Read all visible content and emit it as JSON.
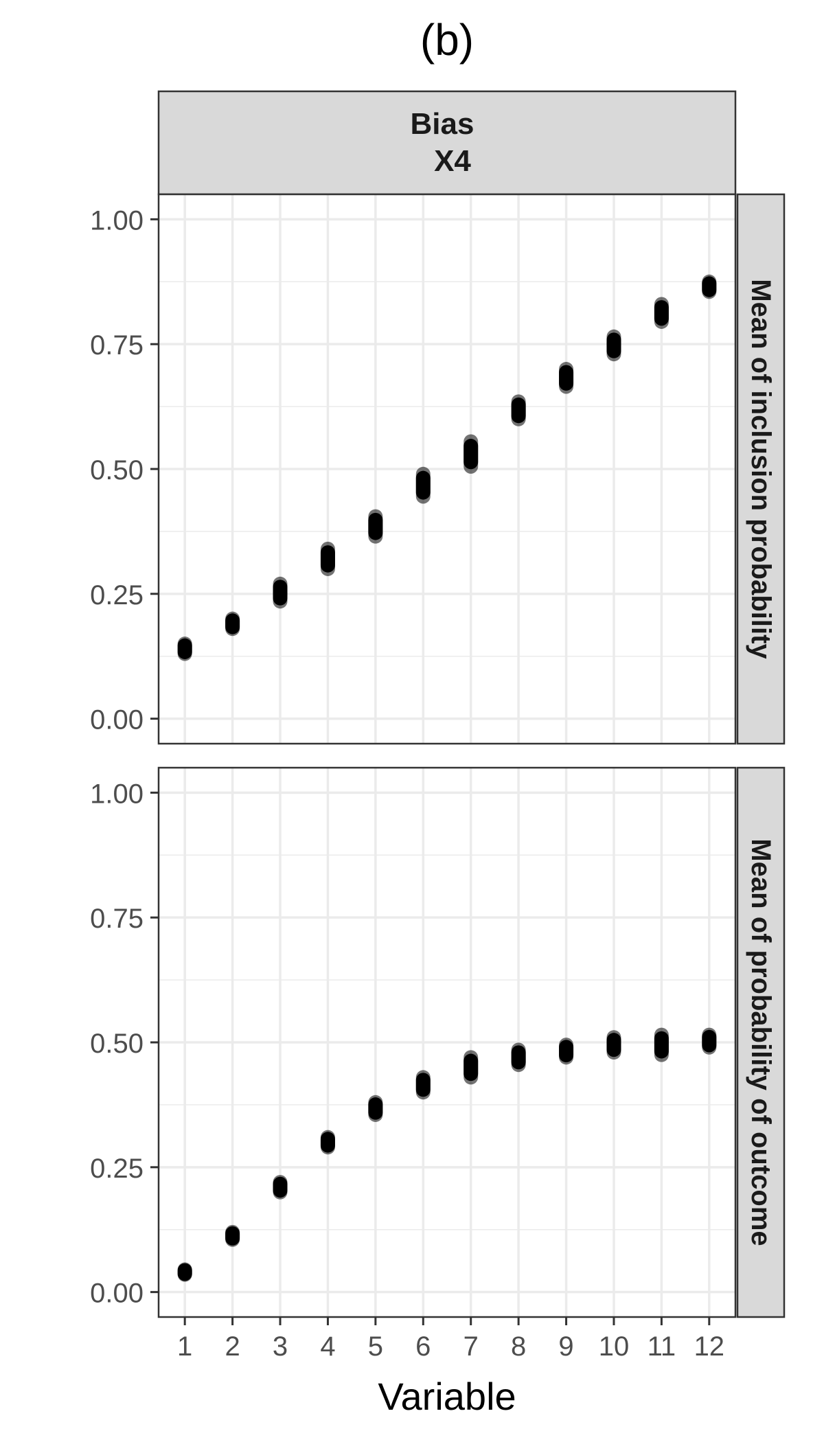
{
  "chart_data": {
    "type": "scatter",
    "title": "(b)",
    "xlabel": "Variable",
    "facet_column": {
      "line1": "Bias",
      "line2": "X4"
    },
    "x_ticks": [
      "1",
      "2",
      "3",
      "4",
      "5",
      "6",
      "7",
      "8",
      "9",
      "10",
      "11",
      "12"
    ],
    "y_ticks": [
      "0.00",
      "0.25",
      "0.50",
      "0.75",
      "1.00"
    ],
    "xlim": [
      0.45,
      12.55
    ],
    "ylim": [
      -0.05,
      1.05
    ],
    "grid": true,
    "panels": [
      {
        "strip_label": "Mean of inclusion probability",
        "x": [
          1,
          2,
          3,
          4,
          5,
          6,
          7,
          8,
          9,
          10,
          11,
          12
        ],
        "y_min": [
          0.13,
          0.18,
          0.235,
          0.3,
          0.365,
          0.445,
          0.505,
          0.6,
          0.665,
          0.73,
          0.795,
          0.855
        ],
        "y_max": [
          0.15,
          0.2,
          0.27,
          0.34,
          0.405,
          0.49,
          0.555,
          0.635,
          0.7,
          0.765,
          0.83,
          0.875
        ]
      },
      {
        "strip_label": "Mean of probability of outcome",
        "x": [
          1,
          2,
          3,
          4,
          5,
          6,
          7,
          8,
          9,
          10,
          11,
          12
        ],
        "y_min": [
          0.035,
          0.105,
          0.2,
          0.29,
          0.355,
          0.4,
          0.43,
          0.455,
          0.47,
          0.48,
          0.475,
          0.49
        ],
        "y_max": [
          0.045,
          0.12,
          0.22,
          0.31,
          0.38,
          0.43,
          0.47,
          0.485,
          0.495,
          0.51,
          0.515,
          0.515
        ]
      }
    ]
  }
}
